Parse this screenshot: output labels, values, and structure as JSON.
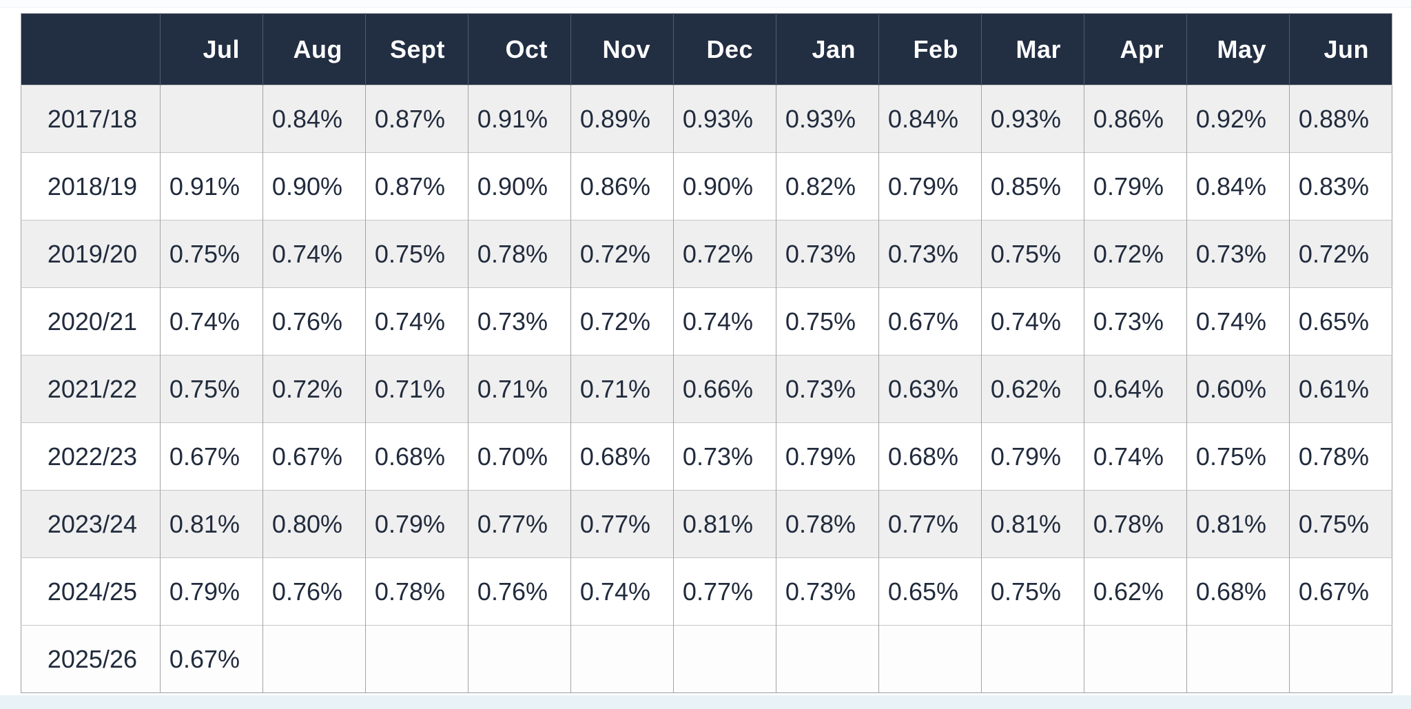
{
  "table": {
    "corner_label": "",
    "columns": [
      "Jul",
      "Aug",
      "Sept",
      "Oct",
      "Nov",
      "Dec",
      "Jan",
      "Feb",
      "Mar",
      "Apr",
      "May",
      "Jun"
    ],
    "rows": [
      {
        "year": "2017/18",
        "values": [
          "",
          "0.84%",
          "0.87%",
          "0.91%",
          "0.89%",
          "0.93%",
          "0.93%",
          "0.84%",
          "0.93%",
          "0.86%",
          "0.92%",
          "0.88%"
        ]
      },
      {
        "year": "2018/19",
        "values": [
          "0.91%",
          "0.90%",
          "0.87%",
          "0.90%",
          "0.86%",
          "0.90%",
          "0.82%",
          "0.79%",
          "0.85%",
          "0.79%",
          "0.84%",
          "0.83%"
        ]
      },
      {
        "year": "2019/20",
        "values": [
          "0.75%",
          "0.74%",
          "0.75%",
          "0.78%",
          "0.72%",
          "0.72%",
          "0.73%",
          "0.73%",
          "0.75%",
          "0.72%",
          "0.73%",
          "0.72%"
        ]
      },
      {
        "year": "2020/21",
        "values": [
          "0.74%",
          "0.76%",
          "0.74%",
          "0.73%",
          "0.72%",
          "0.74%",
          "0.75%",
          "0.67%",
          "0.74%",
          "0.73%",
          "0.74%",
          "0.65%"
        ]
      },
      {
        "year": "2021/22",
        "values": [
          "0.75%",
          "0.72%",
          "0.71%",
          "0.71%",
          "0.71%",
          "0.66%",
          "0.73%",
          "0.63%",
          "0.62%",
          "0.64%",
          "0.60%",
          "0.61%"
        ]
      },
      {
        "year": "2022/23",
        "values": [
          "0.67%",
          "0.67%",
          "0.68%",
          "0.70%",
          "0.68%",
          "0.73%",
          "0.79%",
          "0.68%",
          "0.79%",
          "0.74%",
          "0.75%",
          "0.78%"
        ]
      },
      {
        "year": "2023/24",
        "values": [
          "0.81%",
          "0.80%",
          "0.79%",
          "0.77%",
          "0.77%",
          "0.81%",
          "0.78%",
          "0.77%",
          "0.81%",
          "0.78%",
          "0.81%",
          "0.75%"
        ]
      },
      {
        "year": "2024/25",
        "values": [
          "0.79%",
          "0.76%",
          "0.78%",
          "0.76%",
          "0.74%",
          "0.77%",
          "0.73%",
          "0.65%",
          "0.75%",
          "0.62%",
          "0.68%",
          "0.67%"
        ]
      },
      {
        "year": "2025/26",
        "values": [
          "0.67%",
          "",
          "",
          "",
          "",
          "",
          "",
          "",
          "",
          "",
          "",
          ""
        ]
      }
    ]
  },
  "colors": {
    "header_bg": "#222e42",
    "header_text": "#ffffff",
    "cell_text": "#212b3d",
    "row_alt_bg": "#efefef",
    "row_bg": "#ffffff",
    "border_vertical": "#a3a3a3",
    "border_horizontal": "#c6c6c6",
    "page_bottom_strip": "#e9f3f7"
  },
  "chart_data": {
    "type": "table",
    "title": "",
    "unit": "%",
    "categories": [
      "Jul",
      "Aug",
      "Sept",
      "Oct",
      "Nov",
      "Dec",
      "Jan",
      "Feb",
      "Mar",
      "Apr",
      "May",
      "Jun"
    ],
    "series": [
      {
        "name": "2017/18",
        "values": [
          null,
          0.84,
          0.87,
          0.91,
          0.89,
          0.93,
          0.93,
          0.84,
          0.93,
          0.86,
          0.92,
          0.88
        ]
      },
      {
        "name": "2018/19",
        "values": [
          0.91,
          0.9,
          0.87,
          0.9,
          0.86,
          0.9,
          0.82,
          0.79,
          0.85,
          0.79,
          0.84,
          0.83
        ]
      },
      {
        "name": "2019/20",
        "values": [
          0.75,
          0.74,
          0.75,
          0.78,
          0.72,
          0.72,
          0.73,
          0.73,
          0.75,
          0.72,
          0.73,
          0.72
        ]
      },
      {
        "name": "2020/21",
        "values": [
          0.74,
          0.76,
          0.74,
          0.73,
          0.72,
          0.74,
          0.75,
          0.67,
          0.74,
          0.73,
          0.74,
          0.65
        ]
      },
      {
        "name": "2021/22",
        "values": [
          0.75,
          0.72,
          0.71,
          0.71,
          0.71,
          0.66,
          0.73,
          0.63,
          0.62,
          0.64,
          0.6,
          0.61
        ]
      },
      {
        "name": "2022/23",
        "values": [
          0.67,
          0.67,
          0.68,
          0.7,
          0.68,
          0.73,
          0.79,
          0.68,
          0.79,
          0.74,
          0.75,
          0.78
        ]
      },
      {
        "name": "2023/24",
        "values": [
          0.81,
          0.8,
          0.79,
          0.77,
          0.77,
          0.81,
          0.78,
          0.77,
          0.81,
          0.78,
          0.81,
          0.75
        ]
      },
      {
        "name": "2024/25",
        "values": [
          0.79,
          0.76,
          0.78,
          0.76,
          0.74,
          0.77,
          0.73,
          0.65,
          0.75,
          0.62,
          0.68,
          0.67
        ]
      },
      {
        "name": "2025/26",
        "values": [
          0.67,
          null,
          null,
          null,
          null,
          null,
          null,
          null,
          null,
          null,
          null,
          null
        ]
      }
    ]
  }
}
